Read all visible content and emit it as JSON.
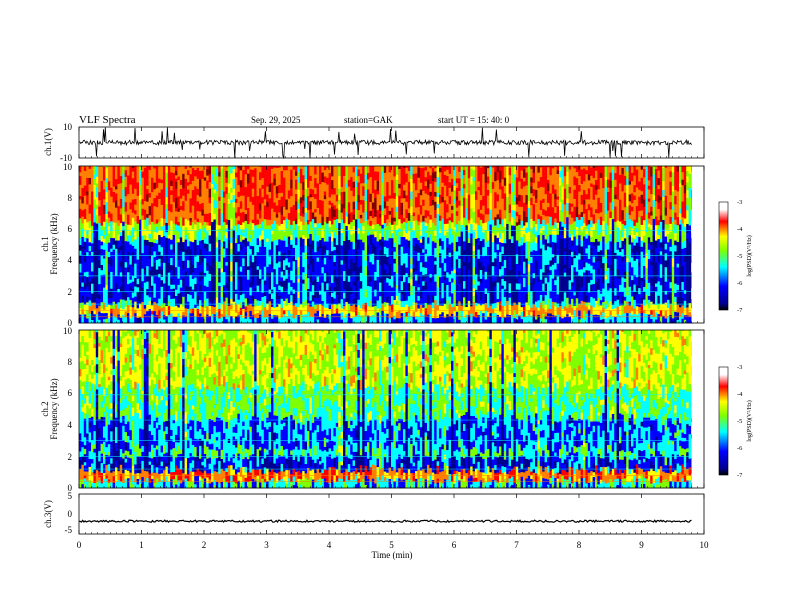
{
  "header": {
    "title": "VLF  Spectra",
    "date": "Sep. 29, 2025",
    "station": "station=GAK",
    "start": "start  UT  =    15: 40: 0"
  },
  "chart_data": [
    {
      "type": "line",
      "name": "ch1-waveform",
      "ylabel": "ch.1(V)",
      "ylim": [
        -10,
        10
      ],
      "yticks": [
        "10",
        "-10"
      ],
      "xlim": [
        0,
        10
      ],
      "baseline": 0,
      "data_end_min": 9.8
    },
    {
      "type": "heatmap",
      "name": "ch1-spectrogram",
      "ylabel": "ch.1",
      "ylabel2": "Frequency (kHz)",
      "ylim": [
        0,
        10
      ],
      "yticks": [
        "0",
        "2",
        "4",
        "6",
        "8",
        "10"
      ],
      "xlim": [
        0,
        10
      ],
      "data_end_min": 9.8,
      "colorbar": {
        "label": "log(PSD)(V²/Hz)",
        "min": -7,
        "max": -3,
        "ticks": [
          "-3",
          "-4",
          "-5",
          "-6",
          "-7"
        ]
      }
    },
    {
      "type": "heatmap",
      "name": "ch2-spectrogram",
      "ylabel": "ch.2",
      "ylabel2": "Frequency (kHz)",
      "ylim": [
        0,
        10
      ],
      "yticks": [
        "0",
        "2",
        "4",
        "6",
        "8",
        "10"
      ],
      "xlim": [
        0,
        10
      ],
      "data_end_min": 9.8,
      "colorbar": {
        "label": "log(PSD)(V²/Hz)",
        "min": -7,
        "max": -3,
        "ticks": [
          "-3",
          "-4",
          "-5",
          "-6",
          "-7"
        ]
      }
    },
    {
      "type": "line",
      "name": "ch3-waveform",
      "ylabel": "ch.3(V)",
      "ylim": [
        -5,
        5
      ],
      "yticks": [
        "5",
        "0",
        "-5"
      ],
      "xlim": [
        0,
        10
      ],
      "baseline": -1.8,
      "data_end_min": 9.8,
      "xlabel": "Time  (min)",
      "xticks": [
        "0",
        "1",
        "2",
        "3",
        "4",
        "5",
        "6",
        "7",
        "8",
        "9",
        "10"
      ]
    }
  ],
  "colors": {
    "jet": [
      "#00008f",
      "#0000ff",
      "#00ffff",
      "#7fff00",
      "#ffff00",
      "#ff7f00",
      "#ff0000",
      "#800000"
    ]
  }
}
